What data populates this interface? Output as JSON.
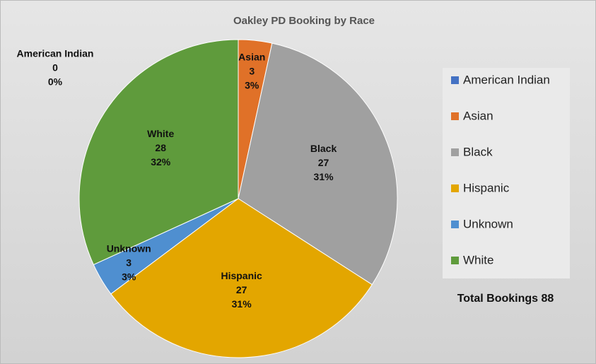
{
  "chart_data": {
    "type": "pie",
    "title": "Oakley PD Booking by Race",
    "categories": [
      "American Indian",
      "Asian",
      "Black",
      "Hispanic",
      "Unknown",
      "White"
    ],
    "values": [
      0,
      3,
      27,
      27,
      3,
      28
    ],
    "percent_labels": [
      "0%",
      "3%",
      "31%",
      "31%",
      "3%",
      "32%"
    ],
    "colors": [
      "#4472c4",
      "#e07128",
      "#a0a0a0",
      "#e3a600",
      "#4f8fd0",
      "#5f9b3c"
    ],
    "annotation": "Total Bookings 88",
    "legend": "right"
  }
}
